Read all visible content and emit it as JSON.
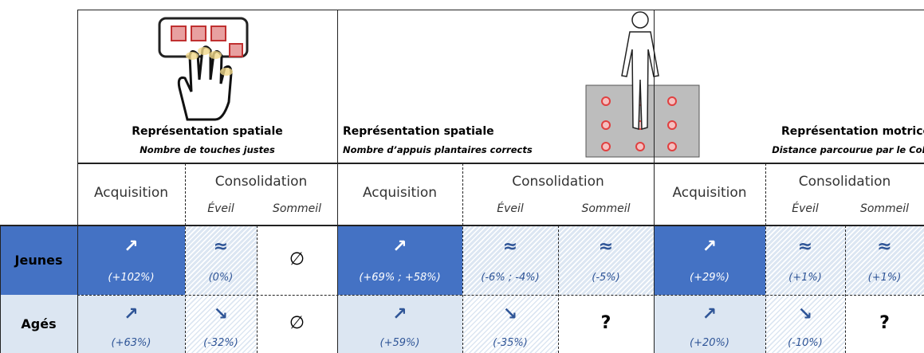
{
  "groups": [
    {
      "title": "Représentation spatiale",
      "subtitle": "Nombre de touches justes",
      "acquisition": "Acquisition",
      "consolidation": "Consolidation",
      "eveil": "Éveil",
      "sommeil": "Sommeil"
    },
    {
      "title": "Représentation spatiale",
      "subtitle": "Nombre d’appuis plantaires corrects",
      "acquisition": "Acquisition",
      "consolidation": "Consolidation",
      "eveil": "Éveil",
      "sommeil": "Sommeil"
    },
    {
      "title": "Représentation motrice",
      "subtitle": "Distance parcourue par le CoP",
      "acquisition": "Acquisition",
      "consolidation": "Consolidation",
      "eveil": "Éveil",
      "sommeil": "Sommeil"
    }
  ],
  "rows": [
    {
      "label": "Jeunes",
      "cells": [
        {
          "symbol": "↗",
          "value": "(+102%)"
        },
        {
          "symbol": "≈",
          "value": "(0%)"
        },
        {
          "symbol": "∅"
        },
        {
          "symbol": "↗",
          "value": "(+69% ; +58%)"
        },
        {
          "symbol": "≈",
          "value": "(-6% ; -4%)"
        },
        {
          "symbol": "≈",
          "value": "(-5%)"
        },
        {
          "symbol": "↗",
          "value": "(+29%)"
        },
        {
          "symbol": "≈",
          "value": "(+1%)"
        },
        {
          "symbol": "≈",
          "value": "(+1%)"
        }
      ]
    },
    {
      "label": "Agés",
      "cells": [
        {
          "symbol": "↗",
          "value": "(+63%)"
        },
        {
          "symbol": "↘",
          "value": "(-32%)"
        },
        {
          "symbol": "∅"
        },
        {
          "symbol": "↗",
          "value": "(+59%)"
        },
        {
          "symbol": "↘",
          "value": "(-35%)"
        },
        {
          "symbol": "?"
        },
        {
          "symbol": "↗",
          "value": "(+20%)"
        },
        {
          "symbol": "↘",
          "value": "(-10%)"
        },
        {
          "symbol": "?"
        }
      ]
    }
  ]
}
